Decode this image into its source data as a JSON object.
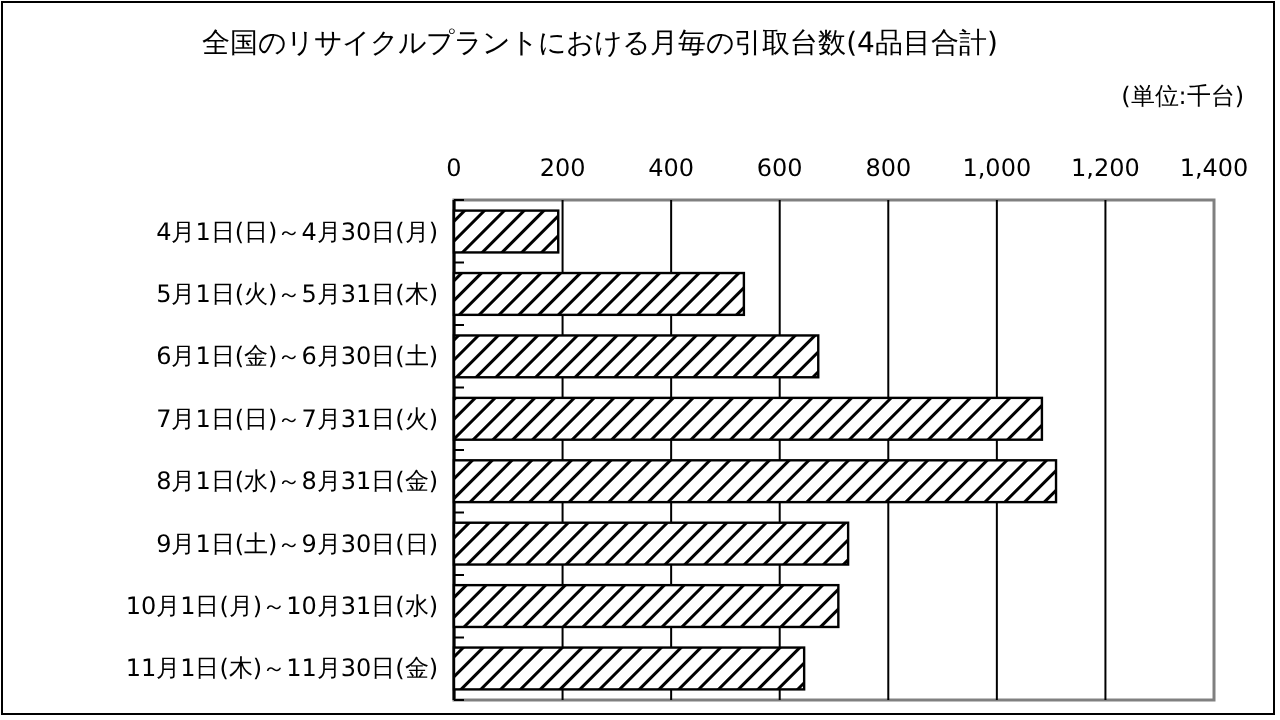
{
  "chart_data": {
    "type": "bar",
    "orientation": "horizontal",
    "title": "全国のリサイクルプラントにおける月毎の引取台数(4品目合計)",
    "annotations": [
      "(単位:千台)"
    ],
    "categories": [
      "4月1日(日)～4月30日(月)",
      "5月1日(火)～5月31日(木)",
      "6月1日(金)～6月30日(土)",
      "7月1日(日)～7月31日(火)",
      "8月1日(水)～8月31日(金)",
      "9月1日(土)～9月30日(日)",
      "10月1日(月)～10月31日(水)",
      "11月1日(木)～11月30日(金)"
    ],
    "values": [
      192,
      534,
      671,
      1083,
      1109,
      726,
      708,
      645
    ],
    "color": "#000000",
    "xlim": [
      0,
      1400
    ],
    "xticks": [
      0,
      200,
      400,
      600,
      800,
      {
        "value": 1000,
        "label": "1,000"
      },
      {
        "value": 1200,
        "label": "1,200"
      },
      {
        "value": 1400,
        "label": "1,400"
      }
    ],
    "grid": "x"
  }
}
